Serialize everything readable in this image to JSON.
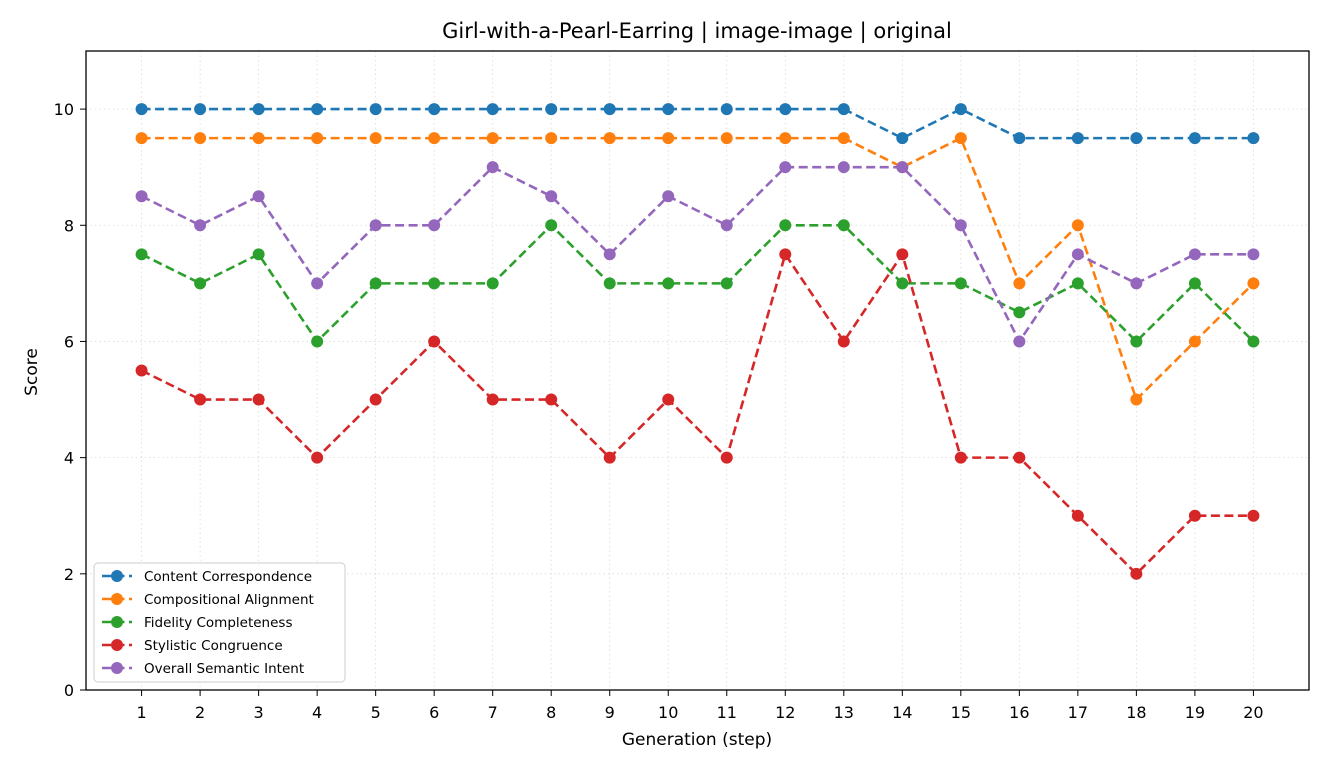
{
  "chart_data": {
    "type": "line",
    "title": "Girl-with-a-Pearl-Earring | image-image | original",
    "xlabel": "Generation (step)",
    "ylabel": "Score",
    "x": [
      1,
      2,
      3,
      4,
      5,
      6,
      7,
      8,
      9,
      10,
      11,
      12,
      13,
      14,
      15,
      16,
      17,
      18,
      19,
      20
    ],
    "xlim": [
      0.05,
      20.95
    ],
    "ylim": [
      0,
      11
    ],
    "yticks": [
      0,
      2,
      4,
      6,
      8,
      10
    ],
    "grid": true,
    "legend_position": "lower-left",
    "series": [
      {
        "name": "Content Correspondence",
        "color": "#1f77b4",
        "values": [
          10,
          10,
          10,
          10,
          10,
          10,
          10,
          10,
          10,
          10,
          10,
          10,
          10,
          9.5,
          10,
          9.5,
          9.5,
          9.5,
          9.5,
          9.5
        ]
      },
      {
        "name": "Compositional Alignment",
        "color": "#ff7f0e",
        "values": [
          9.5,
          9.5,
          9.5,
          9.5,
          9.5,
          9.5,
          9.5,
          9.5,
          9.5,
          9.5,
          9.5,
          9.5,
          9.5,
          9,
          9.5,
          7,
          8,
          5,
          6,
          7
        ]
      },
      {
        "name": "Fidelity Completeness",
        "color": "#2ca02c",
        "values": [
          7.5,
          7,
          7.5,
          6,
          7,
          7,
          7,
          8,
          7,
          7,
          7,
          8,
          8,
          7,
          7,
          6.5,
          7,
          6,
          7,
          6
        ]
      },
      {
        "name": "Stylistic Congruence",
        "color": "#d62728",
        "values": [
          5.5,
          5,
          5,
          4,
          5,
          6,
          5,
          5,
          4,
          5,
          4,
          7.5,
          6,
          7.5,
          4,
          4,
          3,
          2,
          3,
          3
        ]
      },
      {
        "name": "Overall Semantic Intent",
        "color": "#9467bd",
        "values": [
          8.5,
          8,
          8.5,
          7,
          8,
          8,
          9,
          8.5,
          7.5,
          8.5,
          8,
          9,
          9,
          9,
          8,
          6,
          7.5,
          7,
          7.5,
          7.5
        ]
      }
    ]
  }
}
